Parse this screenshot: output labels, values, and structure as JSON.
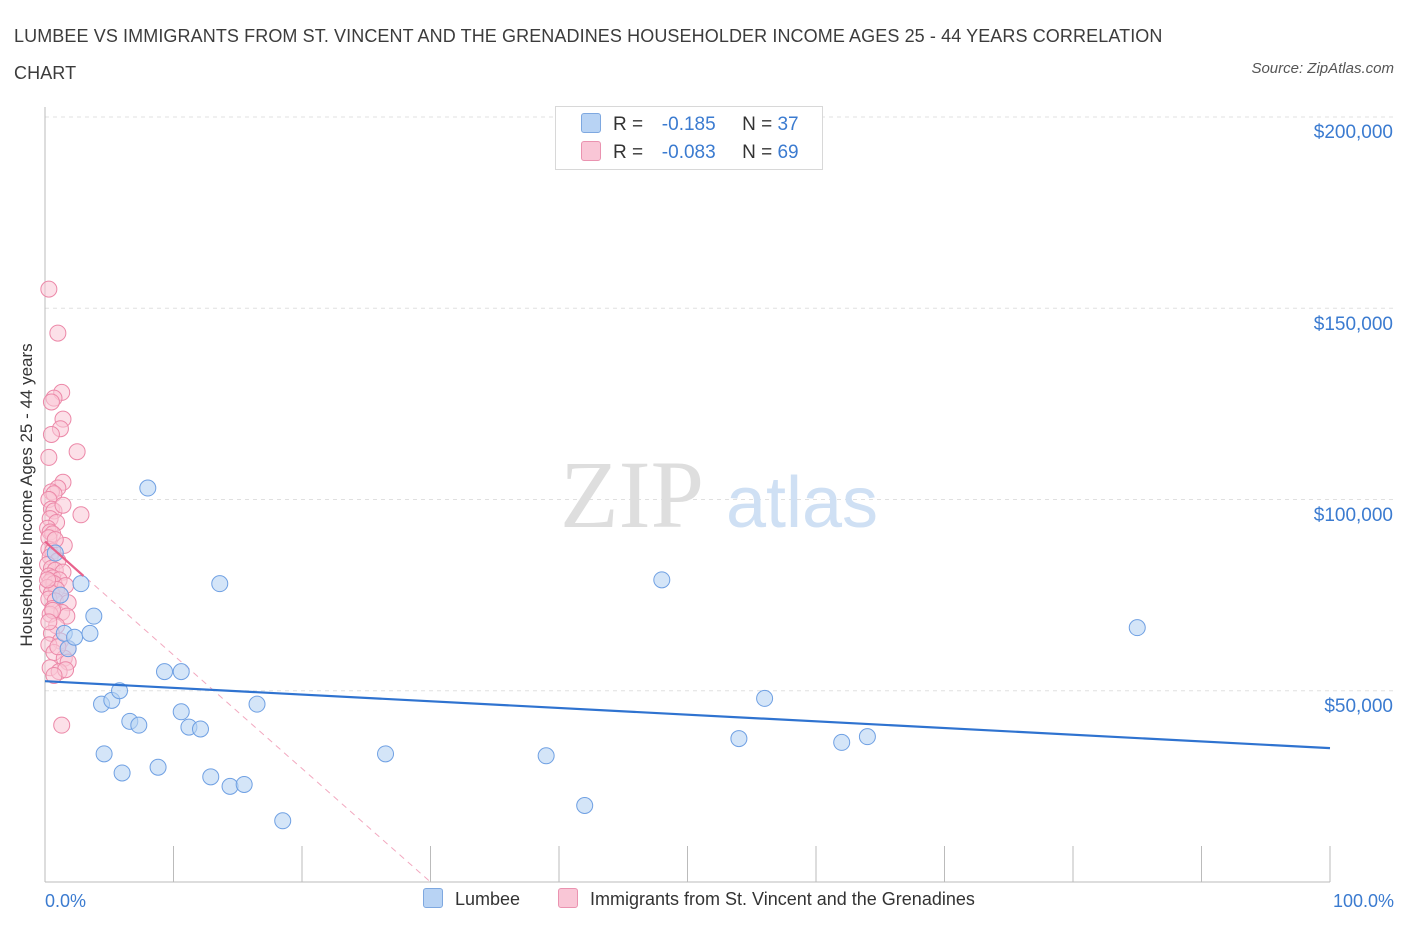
{
  "title": "LUMBEE VS IMMIGRANTS FROM ST. VINCENT AND THE GRENADINES HOUSEHOLDER INCOME AGES 25 - 44 YEARS CORRELATION CHART",
  "source": "Source: ZipAtlas.com",
  "watermark": {
    "zip": "ZIP",
    "atlas": "atlas"
  },
  "legend": {
    "rows": [
      {
        "r_label": "R =",
        "r_value": "-0.185",
        "n_label": "N =",
        "n_value": "37"
      },
      {
        "r_label": "R =",
        "r_value": "-0.083",
        "n_label": "N =",
        "n_value": "69"
      }
    ]
  },
  "colors": {
    "lumbee": "#6fa0e3",
    "lumbee_fill": "#b8d3f4",
    "immigrants": "#ec88a8",
    "immigrants_fill": "#f9c6d6",
    "trend_blue": "#2f73d0",
    "trend_pink": "#e8628c",
    "grid": "#e0e0e0",
    "axis_text": "#3b7bd0"
  },
  "chart_data": {
    "type": "scatter",
    "title": "LUMBEE VS IMMIGRANTS FROM ST. VINCENT AND THE GRENADINES HOUSEHOLDER INCOME AGES 25 - 44 YEARS CORRELATION CHART",
    "xlabel": "",
    "ylabel": "Householder Income Ages 25 - 44 years",
    "xlim": [
      0,
      100
    ],
    "ylim": [
      0,
      200000
    ],
    "x_tick_labels": [
      "0.0%",
      "100.0%"
    ],
    "y_ticks": [
      50000,
      100000,
      150000,
      200000
    ],
    "y_tick_labels": [
      "$50,000",
      "$100,000",
      "$150,000",
      "$200,000"
    ],
    "legend_position": "top-center",
    "series": [
      {
        "name": "Lumbee",
        "R": -0.185,
        "N": 37,
        "points": [
          [
            0.8,
            86000
          ],
          [
            1.2,
            75000
          ],
          [
            1.5,
            65000
          ],
          [
            1.8,
            61000
          ],
          [
            2.3,
            64000
          ],
          [
            2.8,
            78000
          ],
          [
            3.5,
            65000
          ],
          [
            3.8,
            69500
          ],
          [
            4.4,
            46500
          ],
          [
            4.6,
            33500
          ],
          [
            5.2,
            47500
          ],
          [
            5.8,
            50000
          ],
          [
            6.0,
            28500
          ],
          [
            6.6,
            42000
          ],
          [
            7.3,
            41000
          ],
          [
            8.0,
            103000
          ],
          [
            8.8,
            30000
          ],
          [
            9.3,
            55000
          ],
          [
            10.6,
            44500
          ],
          [
            10.6,
            55000
          ],
          [
            11.2,
            40500
          ],
          [
            12.1,
            40000
          ],
          [
            12.9,
            27500
          ],
          [
            13.6,
            78000
          ],
          [
            14.4,
            25000
          ],
          [
            15.5,
            25500
          ],
          [
            16.5,
            46500
          ],
          [
            18.5,
            16000
          ],
          [
            26.5,
            33500
          ],
          [
            39,
            33000
          ],
          [
            42,
            20000
          ],
          [
            48,
            79000
          ],
          [
            54,
            37500
          ],
          [
            56,
            48000
          ],
          [
            62,
            36500
          ],
          [
            64,
            38000
          ],
          [
            85,
            66500
          ]
        ],
        "trend": {
          "x": [
            0,
            100
          ],
          "y": [
            52500,
            35000
          ]
        }
      },
      {
        "name": "Immigrants from St. Vincent and the Grenadines",
        "R": -0.083,
        "N": 69,
        "points": [
          [
            0.3,
            155000
          ],
          [
            1.0,
            143500
          ],
          [
            1.3,
            128000
          ],
          [
            0.7,
            126500
          ],
          [
            0.5,
            125500
          ],
          [
            1.4,
            121000
          ],
          [
            1.2,
            118500
          ],
          [
            0.5,
            117000
          ],
          [
            2.5,
            112500
          ],
          [
            0.3,
            111000
          ],
          [
            1.4,
            104500
          ],
          [
            1.0,
            103000
          ],
          [
            0.5,
            102000
          ],
          [
            0.7,
            101500
          ],
          [
            0.3,
            100000
          ],
          [
            0.5,
            97500
          ],
          [
            0.7,
            97000
          ],
          [
            2.8,
            96000
          ],
          [
            0.4,
            95000
          ],
          [
            0.9,
            94000
          ],
          [
            0.2,
            92500
          ],
          [
            0.4,
            91500
          ],
          [
            0.6,
            91000
          ],
          [
            0.3,
            90000
          ],
          [
            1.5,
            88000
          ],
          [
            0.3,
            87000
          ],
          [
            0.6,
            86500
          ],
          [
            0.4,
            85000
          ],
          [
            1.0,
            84000
          ],
          [
            0.2,
            83000
          ],
          [
            0.5,
            82000
          ],
          [
            0.8,
            81500
          ],
          [
            1.4,
            81000
          ],
          [
            0.3,
            80000
          ],
          [
            0.6,
            79500
          ],
          [
            1.1,
            79000
          ],
          [
            0.4,
            78500
          ],
          [
            0.7,
            78000
          ],
          [
            1.6,
            77500
          ],
          [
            0.2,
            77000
          ],
          [
            0.9,
            76500
          ],
          [
            0.5,
            75500
          ],
          [
            1.2,
            75000
          ],
          [
            0.3,
            74000
          ],
          [
            0.8,
            73500
          ],
          [
            1.8,
            73000
          ],
          [
            0.6,
            71500
          ],
          [
            1.3,
            70500
          ],
          [
            0.4,
            70000
          ],
          [
            1.7,
            69500
          ],
          [
            0.9,
            67000
          ],
          [
            0.5,
            65000
          ],
          [
            1.2,
            63000
          ],
          [
            0.3,
            62000
          ],
          [
            1.8,
            61000
          ],
          [
            0.7,
            60000
          ],
          [
            1.5,
            58500
          ],
          [
            1.8,
            57500
          ],
          [
            0.4,
            56000
          ],
          [
            1.1,
            55000
          ],
          [
            1.6,
            55500
          ],
          [
            0.7,
            54000
          ],
          [
            1.3,
            41000
          ],
          [
            0.6,
            71000
          ],
          [
            1.0,
            61500
          ],
          [
            0.2,
            79000
          ],
          [
            0.8,
            89500
          ],
          [
            1.4,
            98500
          ],
          [
            0.3,
            68000
          ]
        ],
        "trend": {
          "x": [
            0,
            3
          ],
          "y": [
            89000,
            80000
          ]
        },
        "trend_extended": {
          "x": [
            0,
            30
          ],
          "y": [
            89000,
            0
          ]
        }
      }
    ]
  },
  "bottom_legend": [
    "Lumbee",
    "Immigrants from St. Vincent and the Grenadines"
  ]
}
